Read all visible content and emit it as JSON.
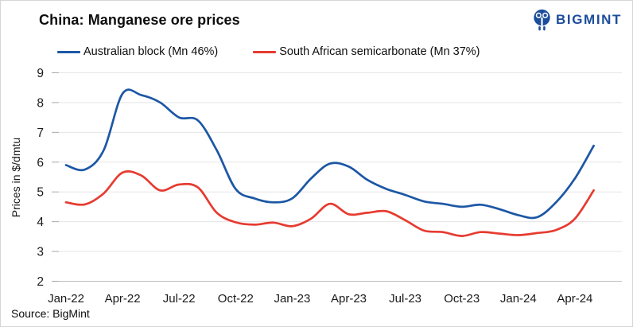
{
  "header": {
    "title": "China: Manganese ore prices"
  },
  "logo": {
    "text": "BIGMINT",
    "icon": "bigmint-people-icon",
    "color": "#1b4d9c"
  },
  "source": "Source:  BigMint",
  "colors": {
    "background": "#ffffff",
    "border": "#d6d6d6",
    "gridline": "#e5e5e5",
    "axis_line": "#bdbdbd",
    "tick": "#a8a8a8",
    "text": "#1a1a1a",
    "accent_blue": "#1c57a5",
    "accent_red": "#e63b30"
  },
  "chart_data": {
    "type": "line",
    "title": "China: Manganese ore prices",
    "xlabel": "",
    "ylabel": "Prices in $/dmtu",
    "ylim": [
      2,
      9
    ],
    "yticks": [
      2,
      3,
      4,
      5,
      6,
      7,
      8,
      9
    ],
    "grid": "horizontal",
    "legend_position": "top",
    "x_ticks_shown_every": 3,
    "x_tick_labels": [
      "Jan-22",
      "Apr-22",
      "Jul-22",
      "Oct-22",
      "Jan-23",
      "Apr-23",
      "Jul-23",
      "Oct-23",
      "Jan-24",
      "Apr-24"
    ],
    "categories": [
      "Jan-22",
      "Feb-22",
      "Mar-22",
      "Apr-22",
      "May-22",
      "Jun-22",
      "Jul-22",
      "Aug-22",
      "Sep-22",
      "Oct-22",
      "Nov-22",
      "Dec-22",
      "Jan-23",
      "Feb-23",
      "Mar-23",
      "Apr-23",
      "May-23",
      "Jun-23",
      "Jul-23",
      "Aug-23",
      "Sep-23",
      "Oct-23",
      "Nov-23",
      "Dec-23",
      "Jan-24",
      "Feb-24",
      "Mar-24",
      "Apr-24",
      "May-24"
    ],
    "series": [
      {
        "name": "Australian block (Mn 46%)",
        "color": "#1c57a5",
        "values": [
          5.9,
          5.75,
          6.4,
          8.3,
          8.25,
          8.0,
          7.5,
          7.4,
          6.4,
          5.1,
          4.78,
          4.65,
          4.78,
          5.45,
          5.95,
          5.85,
          5.4,
          5.1,
          4.9,
          4.68,
          4.6,
          4.5,
          4.57,
          4.42,
          4.22,
          4.15,
          4.65,
          5.45,
          6.55
        ]
      },
      {
        "name": "South African semicarbonate (Mn 37%)",
        "color": "#e63b30",
        "values": [
          4.65,
          4.58,
          4.95,
          5.65,
          5.55,
          5.05,
          5.25,
          5.15,
          4.3,
          3.98,
          3.9,
          3.97,
          3.85,
          4.1,
          4.6,
          4.25,
          4.3,
          4.35,
          4.05,
          3.7,
          3.65,
          3.52,
          3.65,
          3.6,
          3.55,
          3.62,
          3.72,
          4.1,
          5.05
        ]
      }
    ]
  }
}
